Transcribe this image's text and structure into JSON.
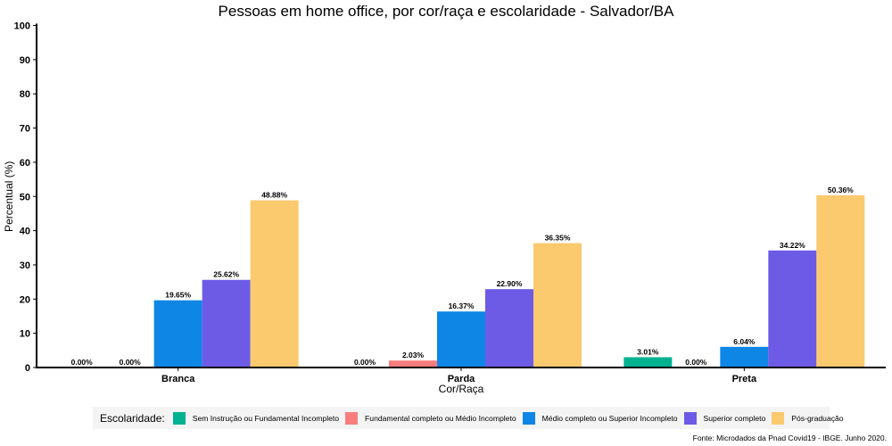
{
  "chart_data": {
    "type": "bar",
    "title": "Pessoas em home office, por cor/raça e escolaridade - Salvador/BA",
    "xlabel": "Cor/Raça",
    "ylabel": "Percentual (%)",
    "ylim": [
      0,
      100
    ],
    "yticks": [
      "0",
      "10",
      "20",
      "30",
      "40",
      "50",
      "60",
      "70",
      "80",
      "90",
      "100"
    ],
    "categories": [
      "Branca",
      "Parda",
      "Preta"
    ],
    "series": [
      {
        "name": "Sem Instrução ou Fundamental Incompleto",
        "color": "#00b28f",
        "values": [
          0.0,
          0.0,
          3.01
        ],
        "labels": [
          "0.00%",
          "0.00%",
          "3.01%"
        ]
      },
      {
        "name": "Fundamental completo ou Médio Incompleto",
        "color": "#fa7d7d",
        "values": [
          0.0,
          2.03,
          0.0
        ],
        "labels": [
          "0.00%",
          "2.03%",
          "0.00%"
        ]
      },
      {
        "name": "Médio completo ou Superior Incompleto",
        "color": "#0e86e6",
        "values": [
          19.65,
          16.37,
          6.04
        ],
        "labels": [
          "19.65%",
          "16.37%",
          "6.04%"
        ]
      },
      {
        "name": "Superior completo",
        "color": "#6d5be6",
        "values": [
          25.62,
          22.9,
          34.22
        ],
        "labels": [
          "25.62%",
          "22.90%",
          "34.22%"
        ]
      },
      {
        "name": "Pós-graduação",
        "color": "#fbc96e",
        "values": [
          48.88,
          36.35,
          50.36
        ],
        "labels": [
          "48.88%",
          "36.35%",
          "50.36%"
        ]
      }
    ],
    "grid": false,
    "legend": {
      "title": "Escolaridade:",
      "position": "bottom"
    },
    "caption": "Fonte: Microdados da Pnad Covid19 - IBGE. Junho 2020."
  }
}
